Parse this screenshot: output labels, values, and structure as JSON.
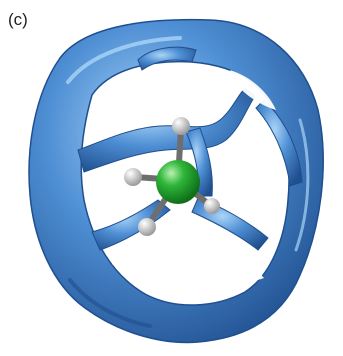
{
  "figure": {
    "panel_label": "(c)"
  },
  "colors": {
    "isosurface": "#4f8fd4",
    "isosurface_shadow": "#1f4f8f",
    "isosurface_highlight": "#a9d4f7",
    "central_atom": "#2fb63a",
    "h_atoms": "#ebebeb",
    "bonds": "#6e6e6e"
  }
}
